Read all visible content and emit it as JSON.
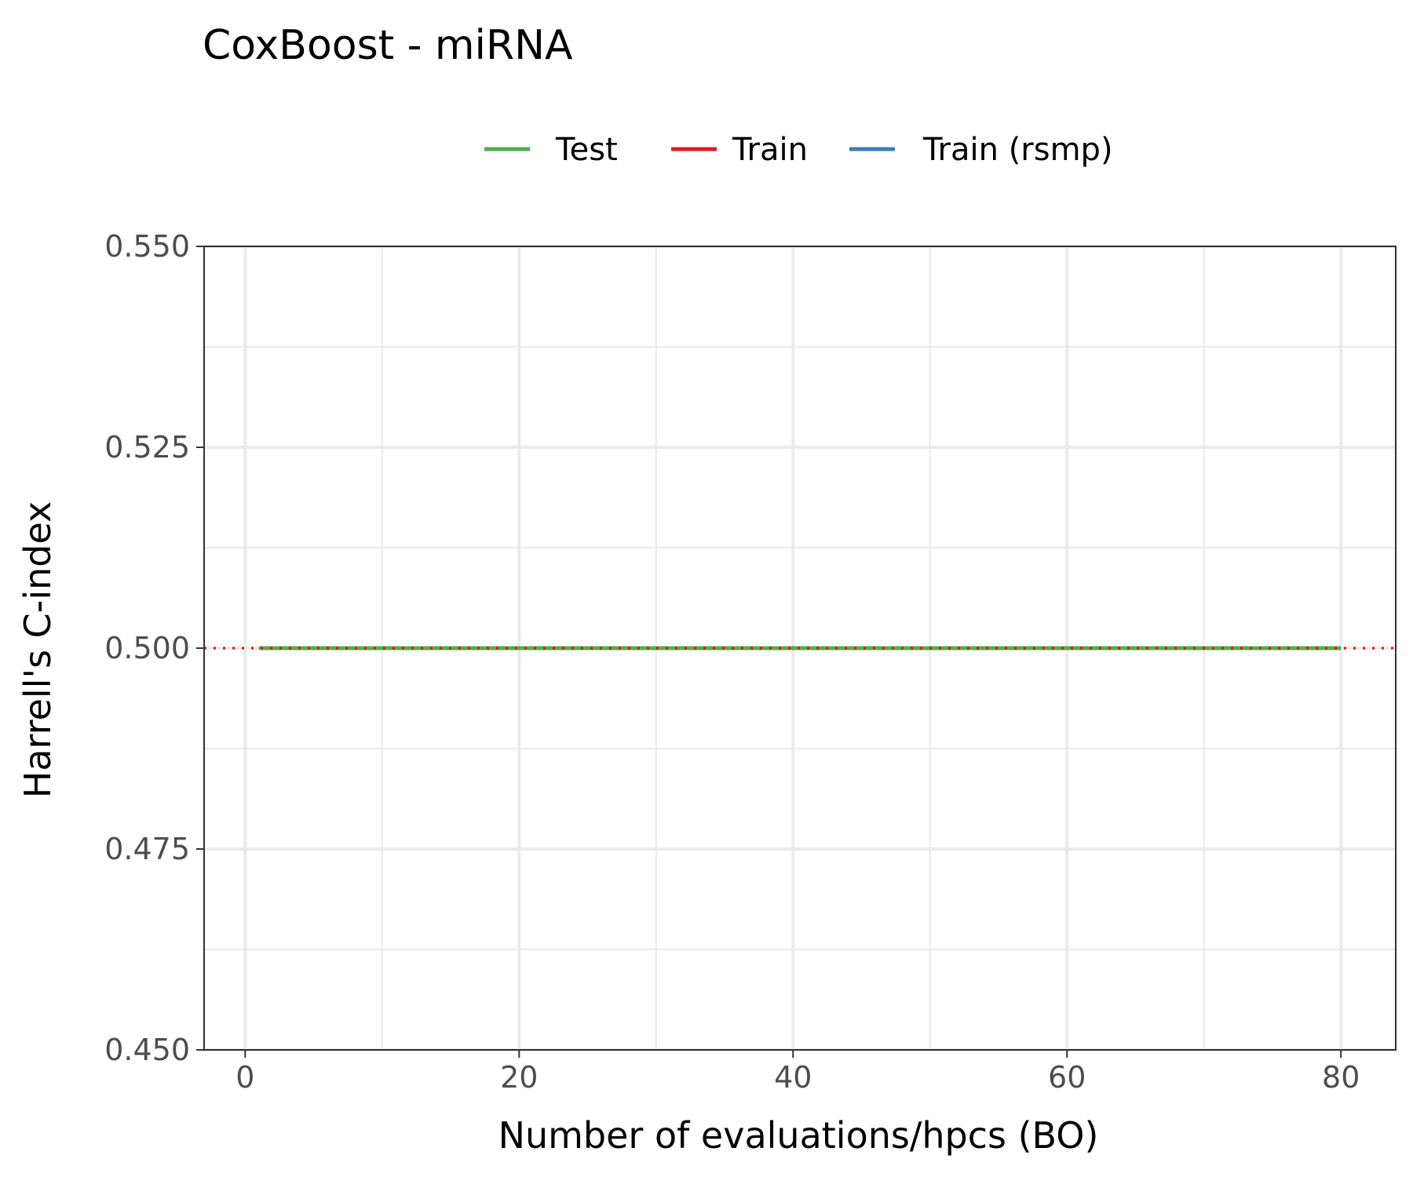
{
  "chart_data": {
    "type": "line",
    "title": "CoxBoost - miRNA",
    "xlabel": "Number of evaluations/hpcs (BO)",
    "ylabel": "Harrell's C-index",
    "xlim": [
      -3,
      84
    ],
    "ylim": [
      0.45,
      0.55
    ],
    "x_ticks": [
      0,
      20,
      40,
      60,
      80
    ],
    "x_tick_labels": [
      "0",
      "20",
      "40",
      "60",
      "80"
    ],
    "y_ticks": [
      0.45,
      0.475,
      0.5,
      0.525,
      0.55
    ],
    "y_tick_labels": [
      "0.450",
      "0.475",
      "0.500",
      "0.525",
      "0.550"
    ],
    "x_minor_grid": [
      10,
      30,
      50,
      70
    ],
    "y_minor_grid": [
      0.4625,
      0.4875,
      0.5125,
      0.5375
    ],
    "grid": true,
    "legend_position": "top",
    "legend": [
      {
        "name": "Test",
        "color": "#4daf4a"
      },
      {
        "name": "Train",
        "color": "#e41a1c"
      },
      {
        "name": "Train (rsmp)",
        "color": "#377eb8"
      }
    ],
    "series": [
      {
        "name": "Test",
        "color": "#4daf4a",
        "x": [
          1,
          80
        ],
        "values": [
          0.5,
          0.5
        ]
      }
    ],
    "reference_line": {
      "y": 0.5,
      "style": "dotted",
      "color": "#ff0000"
    }
  }
}
